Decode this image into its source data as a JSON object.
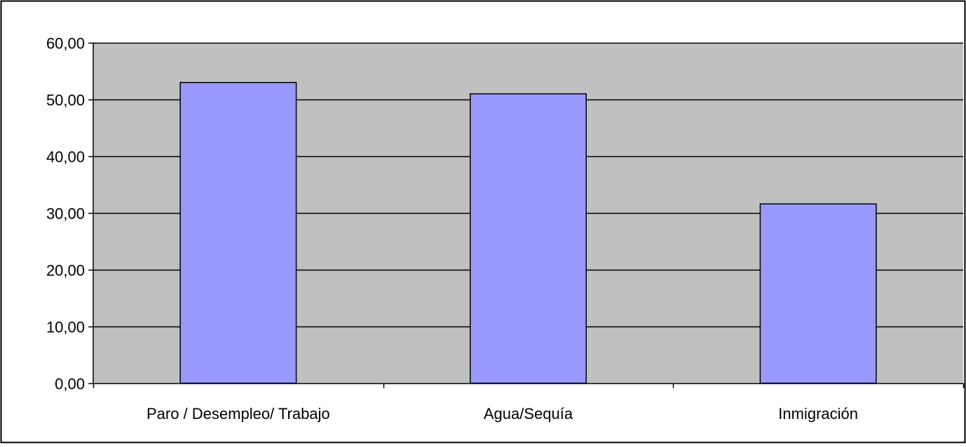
{
  "chart_data": {
    "type": "bar",
    "title": "",
    "xlabel": "",
    "ylabel": "",
    "categories": [
      "Paro / Desempleo/ Trabajo",
      "Agua/Sequía",
      "Inmigración"
    ],
    "values": [
      53.0,
      51.0,
      31.6
    ],
    "ylim": [
      0,
      60
    ],
    "yticks": [
      "0,00",
      "10,00",
      "20,00",
      "30,00",
      "40,00",
      "50,00",
      "60,00"
    ],
    "grid": true,
    "legend": "none"
  },
  "colors": {
    "plot_background": "#c0c0c0",
    "bar_fill": "#9999ff",
    "bar_stroke": "#000000",
    "gridline": "#000000"
  }
}
